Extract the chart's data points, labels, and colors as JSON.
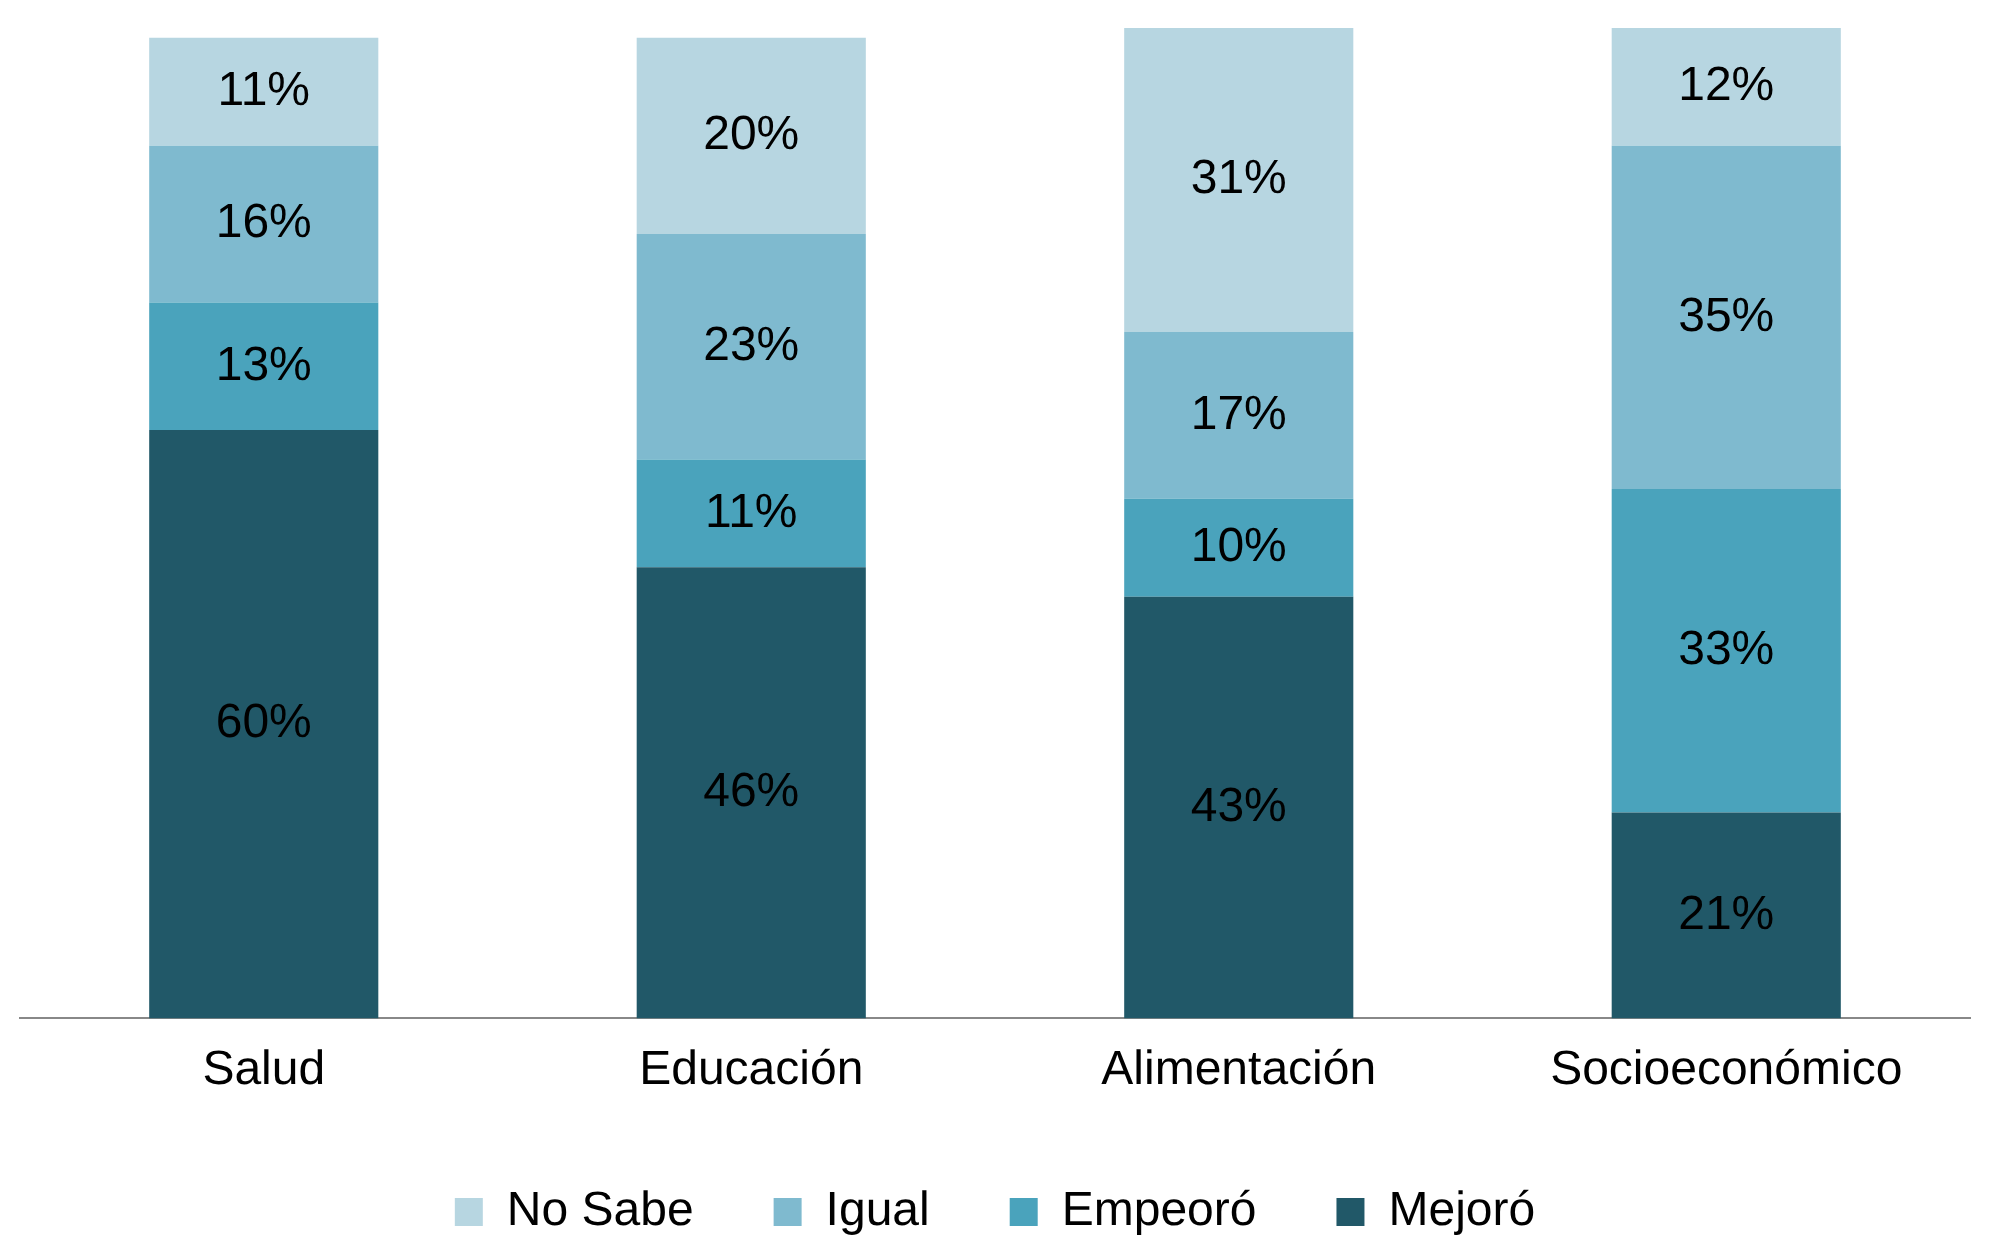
{
  "chart_data": {
    "type": "bar",
    "stacked": true,
    "categories": [
      "Salud",
      "Educación",
      "Alimentación",
      "Socioeconómico"
    ],
    "series": [
      {
        "name": "Mejoró",
        "color": "#215868",
        "values": [
          60,
          46,
          43,
          21
        ],
        "value_labels": [
          "60%",
          "46%",
          "43%",
          "21%"
        ]
      },
      {
        "name": "Empeoró",
        "color": "#4aa3bc",
        "values": [
          13,
          11,
          10,
          33
        ],
        "value_labels": [
          "13%",
          "11%",
          "10%",
          "33%"
        ]
      },
      {
        "name": "Igual",
        "color": "#7fbacf",
        "values": [
          16,
          23,
          17,
          35
        ],
        "value_labels": [
          "16%",
          "23%",
          "17%",
          "35%"
        ]
      },
      {
        "name": "No Sabe",
        "color": "#b7d6e1",
        "values": [
          11,
          20,
          31,
          12
        ],
        "value_labels": [
          "11%",
          "20%",
          "31%",
          "12%"
        ]
      }
    ],
    "legend": "bottom",
    "grid": false
  }
}
